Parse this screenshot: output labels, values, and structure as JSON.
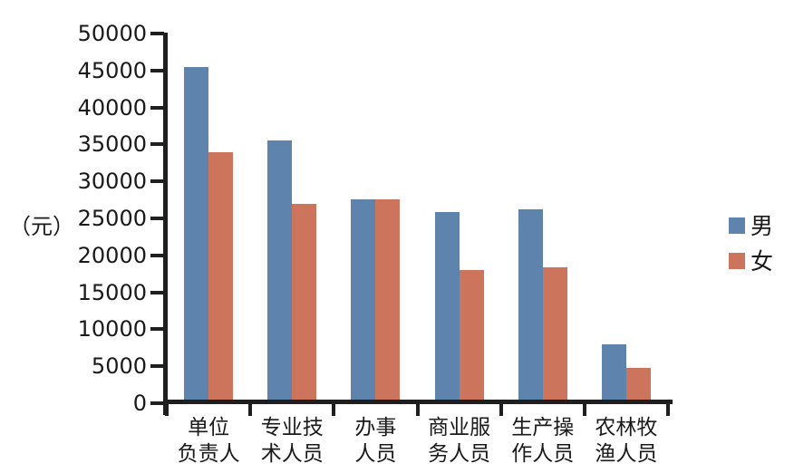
{
  "chart_data": {
    "type": "bar",
    "categories": [
      "单位负责人",
      "专业技术人员",
      "办事人员",
      "商业服务人员",
      "生产操作人员",
      "农林牧渔人员"
    ],
    "category_label_lines": [
      [
        "单位",
        "负责人"
      ],
      [
        "专业技",
        "术人员"
      ],
      [
        "办事",
        "人员"
      ],
      [
        "商业服",
        "务人员"
      ],
      [
        "生产操",
        "作人员"
      ],
      [
        "农林牧",
        "渔人员"
      ]
    ],
    "series": [
      {
        "name": "男",
        "color": "#5e83ad",
        "values": [
          45500,
          35500,
          27600,
          25800,
          26200,
          8000
        ]
      },
      {
        "name": "女",
        "color": "#cd745d",
        "values": [
          34000,
          27000,
          27600,
          18000,
          18400,
          4800
        ]
      }
    ],
    "title": "",
    "xlabel": "",
    "ylabel": "（元）",
    "ylim": [
      0,
      50000
    ],
    "ytick_step": 5000,
    "ytick_labels": [
      "0",
      "5000",
      "10000",
      "15000",
      "20000",
      "25000",
      "30000",
      "35000",
      "40000",
      "45000",
      "50000"
    ],
    "legend_position": "right",
    "grid": false,
    "axis_color": "#1f1f1f",
    "text_color": "#1a1a1a"
  }
}
